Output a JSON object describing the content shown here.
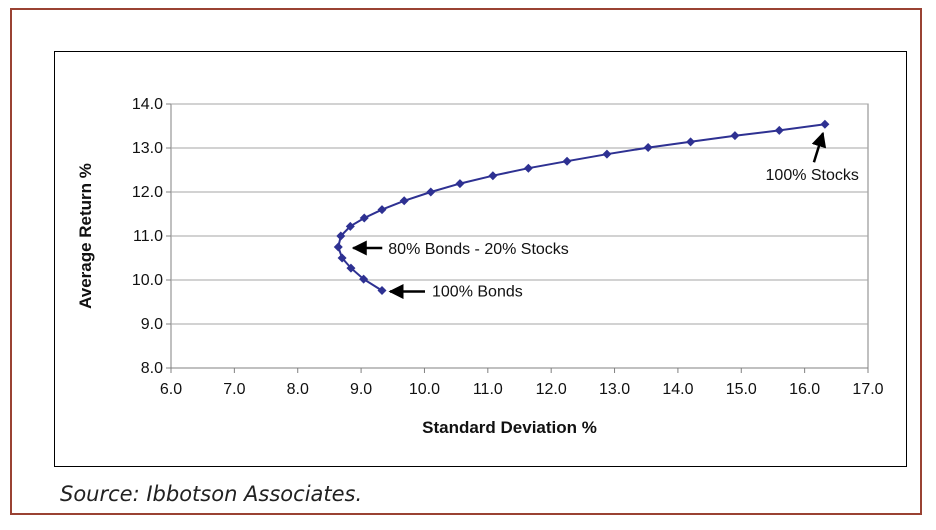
{
  "chart_data": {
    "type": "line",
    "xlabel": "Standard Deviation %",
    "ylabel": "Average Return %",
    "xlim": [
      6.0,
      17.0
    ],
    "ylim": [
      8.0,
      14.0
    ],
    "x_ticks": [
      "6.0",
      "7.0",
      "8.0",
      "9.0",
      "10.0",
      "11.0",
      "12.0",
      "13.0",
      "14.0",
      "15.0",
      "16.0",
      "17.0"
    ],
    "y_ticks": [
      "8.0",
      "9.0",
      "10.0",
      "11.0",
      "12.0",
      "13.0",
      "14.0"
    ],
    "grid": "horizontal",
    "series": [
      {
        "color": "#2e3192",
        "marker": "diamond",
        "points": [
          [
            9.33,
            9.76
          ],
          [
            9.04,
            10.02
          ],
          [
            8.84,
            10.27
          ],
          [
            8.7,
            10.5
          ],
          [
            8.64,
            10.75
          ],
          [
            8.68,
            11.0
          ],
          [
            8.83,
            11.22
          ],
          [
            9.05,
            11.41
          ],
          [
            9.33,
            11.6
          ],
          [
            9.68,
            11.8
          ],
          [
            10.1,
            12.0
          ],
          [
            10.56,
            12.19
          ],
          [
            11.08,
            12.37
          ],
          [
            11.64,
            12.54
          ],
          [
            12.25,
            12.7
          ],
          [
            12.88,
            12.86
          ],
          [
            13.53,
            13.01
          ],
          [
            14.2,
            13.14
          ],
          [
            14.9,
            13.28
          ],
          [
            15.6,
            13.4
          ],
          [
            16.32,
            13.54
          ]
        ]
      }
    ],
    "annotations": [
      {
        "text": "100% Stocks",
        "x": 16.32,
        "y": 13.54
      },
      {
        "text": "80% Bonds -  20% Stocks",
        "x": 8.64,
        "y": 10.75
      },
      {
        "text": "100% Bonds",
        "x": 9.33,
        "y": 9.76
      }
    ]
  },
  "source": "Source: Ibbotson Associates."
}
